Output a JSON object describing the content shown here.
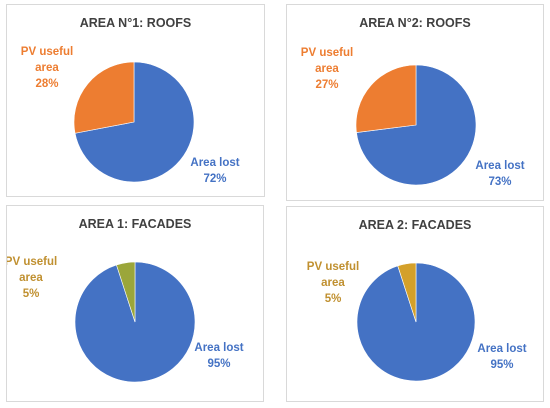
{
  "chart_data": [
    {
      "type": "pie",
      "title": "AREA N°1: ROOFS",
      "slices": [
        {
          "label_lines": [
            "Area lost",
            "72%"
          ],
          "value": 72,
          "color": "#4472C4",
          "label_color": "#4472C4"
        },
        {
          "label_lines": [
            "PV useful",
            "area",
            "28%"
          ],
          "value": 28,
          "color": "#ED7D31",
          "label_color": "#ED7D31"
        }
      ]
    },
    {
      "type": "pie",
      "title": "AREA N°2: ROOFS",
      "slices": [
        {
          "label_lines": [
            "Area lost",
            "73%"
          ],
          "value": 73,
          "color": "#4472C4",
          "label_color": "#4472C4"
        },
        {
          "label_lines": [
            "PV useful",
            "area",
            "27%"
          ],
          "value": 27,
          "color": "#ED7D31",
          "label_color": "#ED7D31"
        }
      ]
    },
    {
      "type": "pie",
      "title": "AREA 1: FACADES",
      "slices": [
        {
          "label_lines": [
            "Area lost",
            "95%"
          ],
          "value": 95,
          "color": "#4472C4",
          "label_color": "#4472C4"
        },
        {
          "label_lines": [
            "PV useful",
            "area",
            "5%"
          ],
          "value": 5,
          "color": "#9BA63A",
          "label_color": "#C09030"
        }
      ]
    },
    {
      "type": "pie",
      "title": "AREA 2: FACADES",
      "slices": [
        {
          "label_lines": [
            "Area lost",
            "95%"
          ],
          "value": 95,
          "color": "#4472C4",
          "label_color": "#4472C4"
        },
        {
          "label_lines": [
            "PV useful",
            "area",
            "5%"
          ],
          "value": 5,
          "color": "#D4A02A",
          "label_color": "#C09030"
        }
      ]
    }
  ]
}
